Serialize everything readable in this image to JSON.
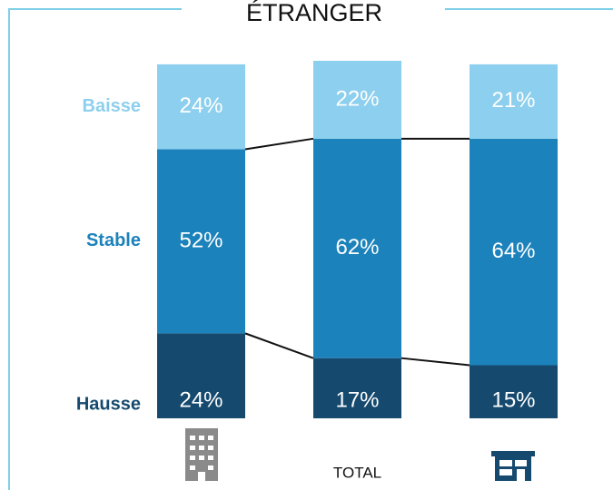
{
  "chart_data": {
    "type": "stacked_bar",
    "title": "ÉTRANGER",
    "categories": [
      null,
      "TOTAL",
      null
    ],
    "series": [
      {
        "name": "Hausse",
        "color": "#154a6e",
        "values": [
          24,
          17,
          15
        ],
        "value_labels": [
          "24%",
          "17%",
          "15%"
        ]
      },
      {
        "name": "Stable",
        "color": "#1b82bb",
        "values": [
          52,
          62,
          64
        ],
        "value_labels": [
          "52%",
          "62%",
          "64%"
        ]
      },
      {
        "name": "Baisse",
        "color": "#8dcfee",
        "values": [
          24,
          22,
          21
        ],
        "value_labels": [
          "24%",
          "22%",
          "21%"
        ]
      }
    ]
  }
}
